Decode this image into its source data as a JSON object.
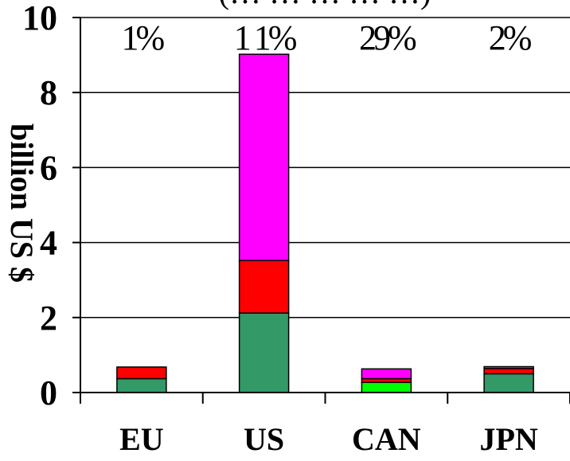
{
  "chart_data": {
    "type": "bar",
    "stacked": true,
    "title": "(… … … … …)",
    "ylabel": "billion US $",
    "ylim": [
      0,
      10
    ],
    "yticks": [
      0,
      2,
      4,
      6,
      8,
      10
    ],
    "grid": true,
    "categories": [
      "EU",
      "US",
      "CAN",
      "JPN"
    ],
    "percent_labels": [
      "1%",
      "1 1%",
      "29%",
      "2%"
    ],
    "series": [
      {
        "color": "#339966",
        "values": [
          0.37,
          2.12,
          0,
          0.5
        ]
      },
      {
        "color": "#00ff00",
        "values": [
          0,
          0,
          0.27,
          0
        ]
      },
      {
        "color": "#ff0000",
        "values": [
          0.31,
          1.4,
          0.1,
          0.14
        ]
      },
      {
        "color": "#ff00ff",
        "values": [
          0,
          5.5,
          0.26,
          0.05
        ]
      }
    ]
  }
}
